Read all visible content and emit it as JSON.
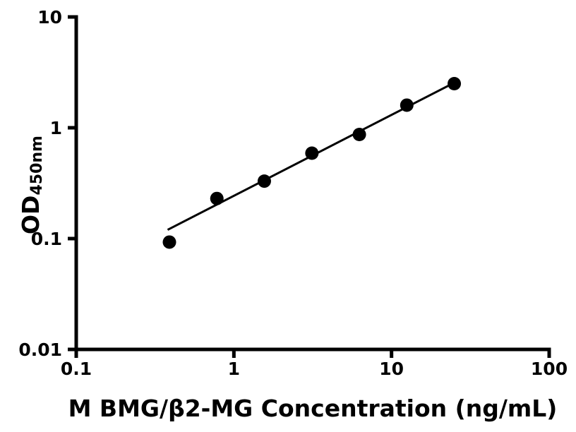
{
  "figure": {
    "background": "#ffffff"
  },
  "chart_data": {
    "type": "scatter",
    "title": "",
    "xlabel": "M BMG/β2-MG Concentration (ng/mL)",
    "ylabel_main": "OD",
    "ylabel_sub": "450nm",
    "x_scale": "log",
    "y_scale": "log",
    "xlim": [
      0.1,
      100
    ],
    "ylim": [
      0.01,
      10
    ],
    "grid": false,
    "legend_position": "none",
    "color": "#000000",
    "x_ticks": [
      {
        "value": 0.1,
        "label": "0.1"
      },
      {
        "value": 1,
        "label": "1"
      },
      {
        "value": 10,
        "label": "10"
      },
      {
        "value": 100,
        "label": "100"
      }
    ],
    "y_ticks": [
      {
        "value": 0.01,
        "label": "0.01"
      },
      {
        "value": 0.1,
        "label": "0.1"
      },
      {
        "value": 1,
        "label": "1"
      },
      {
        "value": 10,
        "label": "10"
      }
    ],
    "series": [
      {
        "name": "fit-line",
        "type": "line",
        "color": "#000000",
        "points": [
          {
            "x": 0.38,
            "y": 0.12
          },
          {
            "x": 25,
            "y": 2.55
          }
        ]
      },
      {
        "name": "standard-points",
        "type": "scatter",
        "marker": "circle",
        "color": "#000000",
        "points": [
          {
            "x": 0.39,
            "y": 0.093
          },
          {
            "x": 0.78,
            "y": 0.23
          },
          {
            "x": 1.56,
            "y": 0.33
          },
          {
            "x": 3.125,
            "y": 0.59
          },
          {
            "x": 6.25,
            "y": 0.87
          },
          {
            "x": 12.5,
            "y": 1.6
          },
          {
            "x": 25,
            "y": 2.5
          }
        ]
      }
    ]
  }
}
